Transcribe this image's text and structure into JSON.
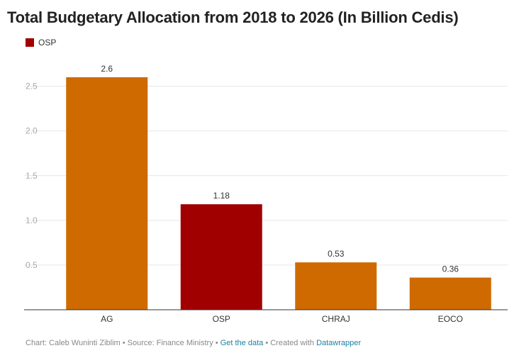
{
  "title": "Total Budgetary Allocation from 2018 to 2026 (In Billion Cedis)",
  "legend": {
    "label": "OSP",
    "color": "#a00000"
  },
  "footer": {
    "chart_by": "Chart: Caleb Wuninti Ziblim",
    "source": "Source: Finance Ministry",
    "get_data": "Get the data",
    "created_with": "Created with",
    "tool": "Datawrapper",
    "separator": "•"
  },
  "colors": {
    "default_bar": "#cf6a00",
    "highlight_bar": "#a00000",
    "grid": "#e6e6e6",
    "axis": "#333333",
    "link": "#1d81a2"
  },
  "chart_data": {
    "type": "bar",
    "title": "Total Budgetary Allocation from 2018 to 2026 (In Billion Cedis)",
    "categories": [
      "AG",
      "OSP",
      "CHRAJ",
      "EOCO"
    ],
    "values": [
      2.6,
      1.18,
      0.53,
      0.36
    ],
    "value_labels": [
      "2.6",
      "1.18",
      "0.53",
      "0.36"
    ],
    "highlight": "OSP",
    "yticks": [
      0.5,
      1.0,
      1.5,
      2.0,
      2.5
    ],
    "ytick_labels": [
      "0.5",
      "1.0",
      "1.5",
      "2.0",
      "2.5"
    ],
    "ylim": [
      0,
      2.6
    ],
    "grid": true,
    "legend": [
      "OSP"
    ],
    "legend_position": "top-left"
  }
}
